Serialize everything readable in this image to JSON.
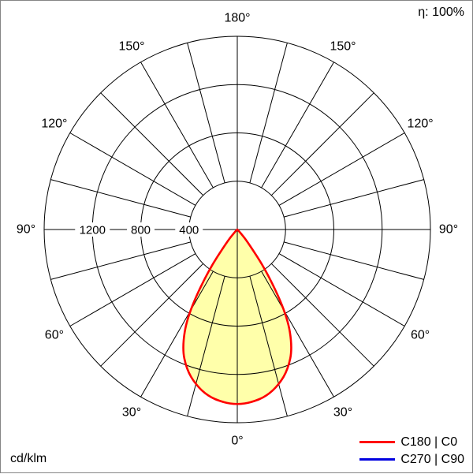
{
  "frame": {
    "border_color": "#858585",
    "background": "#ffffff"
  },
  "chart_data": {
    "type": "line",
    "projection": "polar",
    "units": "cd/klm",
    "efficiency": "η: 100%",
    "r_axis": {
      "min": 0,
      "max": 1600,
      "ring_step": 400,
      "ticks": [
        {
          "value": 400,
          "label": "400"
        },
        {
          "value": 800,
          "label": "800"
        },
        {
          "value": 1200,
          "label": "1200"
        }
      ]
    },
    "angle_axis": {
      "zero_position": "bottom",
      "spoke_step_deg": 15,
      "ticks": [
        {
          "deg": 0,
          "label": "0°"
        },
        {
          "deg": 30,
          "label": "30°"
        },
        {
          "deg": 60,
          "label": "60°"
        },
        {
          "deg": 90,
          "label": "90°"
        },
        {
          "deg": 120,
          "label": "120°"
        },
        {
          "deg": 150,
          "label": "150°"
        },
        {
          "deg": 180,
          "label": "180°"
        }
      ]
    },
    "series": [
      {
        "name": "C180 | C0",
        "color": "#ff0000",
        "fill": "#ffffaa",
        "gamma_deg": [
          0,
          5,
          10,
          15,
          20,
          25,
          30,
          35,
          40,
          45,
          50,
          55
        ],
        "cd_per_klm": [
          1450,
          1435,
          1400,
          1330,
          1230,
          1080,
          830,
          430,
          130,
          30,
          5,
          0
        ]
      },
      {
        "name": "C270 | C90",
        "color": "#0000e0"
      }
    ],
    "grid_color": "#000000",
    "legend_position": "bottom-right"
  }
}
